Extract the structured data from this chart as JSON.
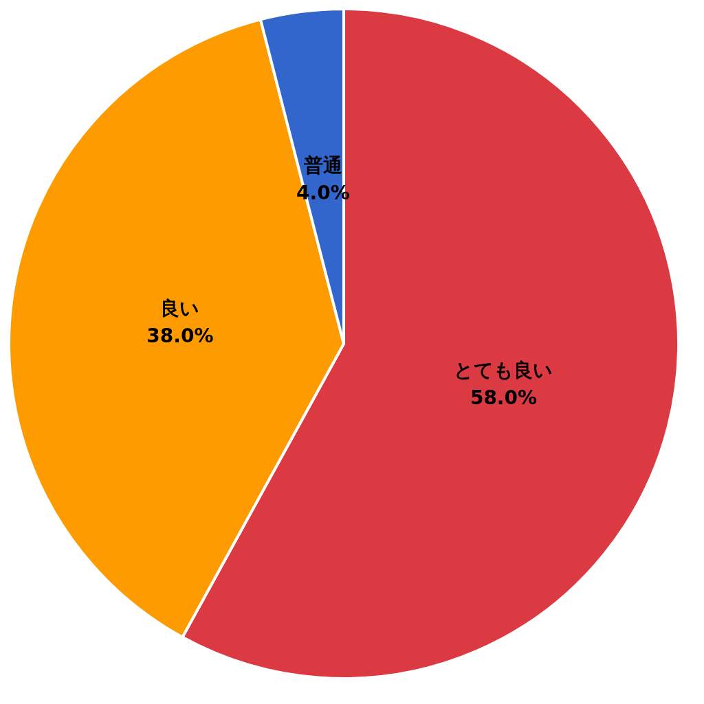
{
  "chart_data": {
    "type": "pie",
    "categories": [
      "とても良い",
      "良い",
      "普通"
    ],
    "values": [
      58.0,
      38.0,
      4.0
    ],
    "colors": [
      "#dc3a42",
      "#fd9b00",
      "#3366cc"
    ],
    "value_labels": [
      "58.0%",
      "38.0%",
      "4.0%"
    ],
    "legend": false
  }
}
